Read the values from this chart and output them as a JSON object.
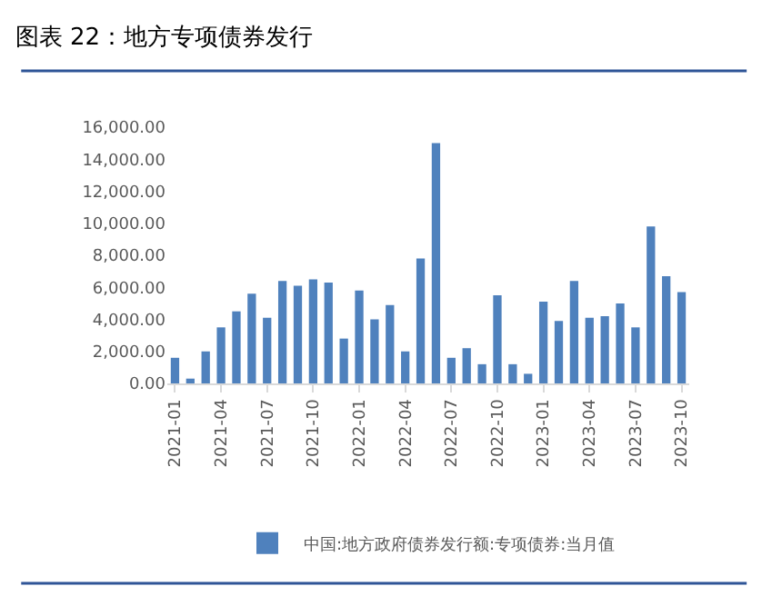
{
  "chart_data": {
    "type": "bar",
    "title": "图表 22：地方专项债券发行",
    "categories": [
      "2021-01",
      null,
      null,
      "2021-04",
      null,
      null,
      "2021-07",
      null,
      null,
      "2021-10",
      null,
      null,
      "2022-01",
      null,
      null,
      "2022-04",
      null,
      null,
      "2022-07",
      null,
      null,
      "2022-10",
      null,
      null,
      "2023-01",
      null,
      null,
      "2023-04",
      null,
      null,
      "2023-07",
      null,
      null,
      "2023-10"
    ],
    "series": [
      {
        "name": "中国:地方政府债券发行额:专项债券:当月值",
        "color": "#4f81bd",
        "values": [
          1600,
          300,
          2000,
          3500,
          4500,
          5600,
          4100,
          6400,
          6100,
          6500,
          6300,
          2800,
          5800,
          4000,
          4900,
          2000,
          7800,
          15000,
          1600,
          2200,
          1200,
          5500,
          1200,
          600,
          5100,
          3900,
          6400,
          4100,
          4200,
          5000,
          3500,
          9800,
          6700,
          5700
        ]
      }
    ],
    "ylim": [
      0,
      16000
    ],
    "yticks": [
      {
        "value": 0,
        "label": "0.00"
      },
      {
        "value": 2000,
        "label": "2,000.00"
      },
      {
        "value": 4000,
        "label": "4,000.00"
      },
      {
        "value": 6000,
        "label": "6,000.00"
      },
      {
        "value": 8000,
        "label": "8,000.00"
      },
      {
        "value": 10000,
        "label": "10,000.00"
      },
      {
        "value": 12000,
        "label": "12,000.00"
      },
      {
        "value": 14000,
        "label": "14,000.00"
      },
      {
        "value": 16000,
        "label": "16,000.00"
      }
    ],
    "grid": false,
    "legend": "bottom"
  }
}
